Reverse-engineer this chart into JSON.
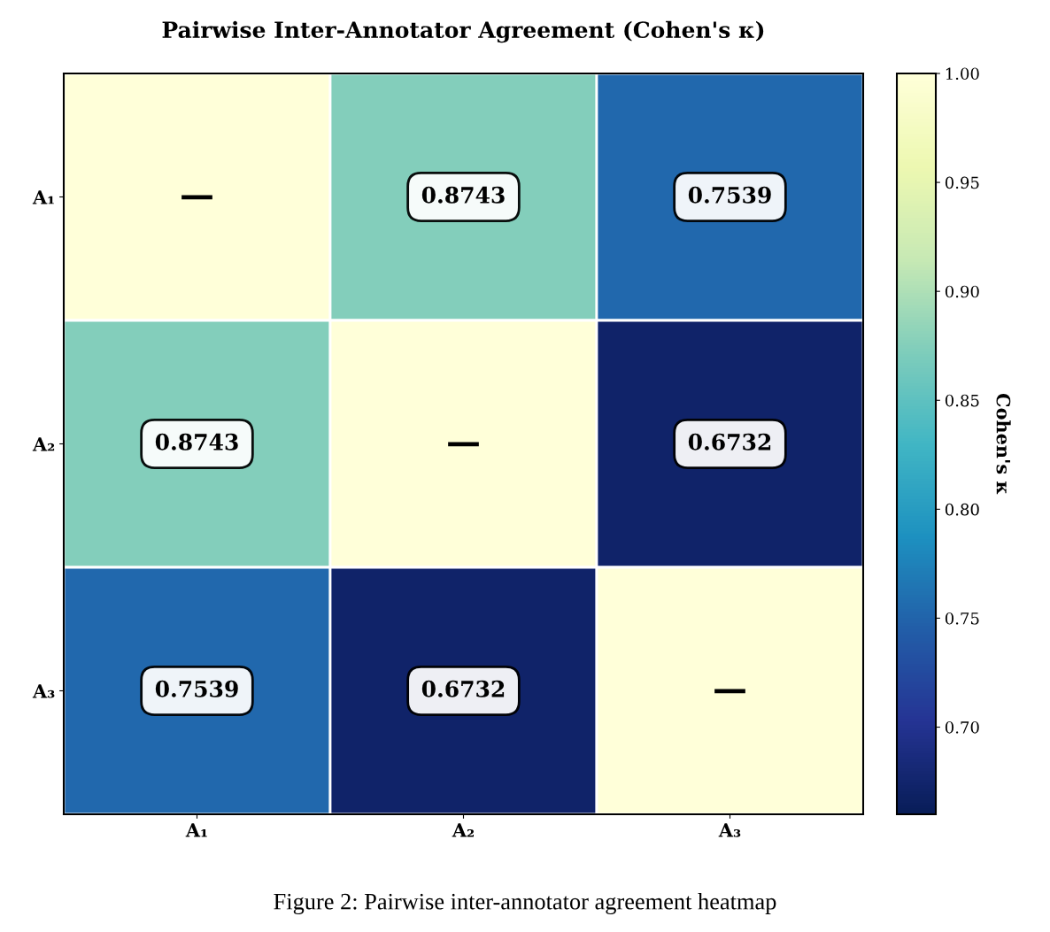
{
  "chart_data": {
    "type": "heatmap",
    "title": "Pairwise Inter-Annotator Agreement (Cohen's κ)",
    "categories": [
      "A₁",
      "A₂",
      "A₃"
    ],
    "y_categories": [
      "A₁",
      "A₂",
      "A₃"
    ],
    "cells": [
      [
        1.0,
        0.8743,
        0.7539
      ],
      [
        0.8743,
        1.0,
        0.6732
      ],
      [
        0.7539,
        0.6732,
        1.0
      ]
    ],
    "cell_labels": [
      [
        "—",
        "0.8743",
        "0.7539"
      ],
      [
        "0.8743",
        "—",
        "0.6732"
      ],
      [
        "0.7539",
        "0.6732",
        "—"
      ]
    ],
    "clabel": "Cohen's κ",
    "clim": [
      0.66,
      1.0
    ],
    "cticks": [
      {
        "value": 0.7,
        "label": "0.70"
      },
      {
        "value": 0.75,
        "label": "0.75"
      },
      {
        "value": 0.8,
        "label": "0.80"
      },
      {
        "value": 0.85,
        "label": "0.85"
      },
      {
        "value": 0.9,
        "label": "0.90"
      },
      {
        "value": 0.95,
        "label": "0.95"
      },
      {
        "value": 1.0,
        "label": "1.00"
      }
    ],
    "annotations": [
      "Figure 2: Pairwise inter-annotator agreement heatmap"
    ]
  }
}
